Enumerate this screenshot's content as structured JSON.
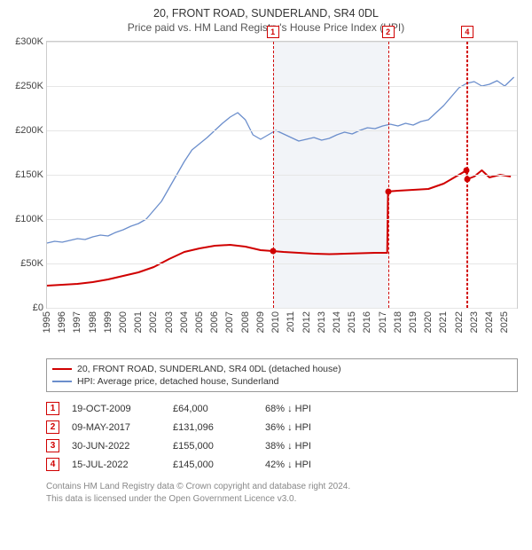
{
  "title": "20, FRONT ROAD, SUNDERLAND, SR4 0DL",
  "subtitle": "Price paid vs. HM Land Registry's House Price Index (HPI)",
  "chart": {
    "type": "line",
    "x_start": 1995,
    "x_end": 2025.8,
    "x_ticks": [
      1995,
      1996,
      1997,
      1998,
      1999,
      2000,
      2001,
      2002,
      2003,
      2004,
      2005,
      2006,
      2007,
      2008,
      2009,
      2010,
      2011,
      2012,
      2013,
      2014,
      2015,
      2016,
      2017,
      2018,
      2019,
      2020,
      2021,
      2022,
      2023,
      2024,
      2025
    ],
    "ylim": [
      0,
      300000
    ],
    "y_ticks": [
      0,
      50000,
      100000,
      150000,
      200000,
      250000,
      300000
    ],
    "y_tick_labels": [
      "£0",
      "£50K",
      "£100K",
      "£150K",
      "£200K",
      "£250K",
      "£300K"
    ],
    "grid_color": "#e6e6e6",
    "border_color": "#cccccc",
    "background_color": "#ffffff",
    "band": {
      "start": 2009.8,
      "end": 2017.35,
      "color": "#f2f4f8"
    },
    "series": [
      {
        "name": "price_paid",
        "label": "20, FRONT ROAD, SUNDERLAND, SR4 0DL (detached house)",
        "color": "#d00000",
        "line_width": 2,
        "points": [
          [
            1995.0,
            25000
          ],
          [
            1996.0,
            26000
          ],
          [
            1997.0,
            27000
          ],
          [
            1998.0,
            29000
          ],
          [
            1999.0,
            32000
          ],
          [
            2000.0,
            36000
          ],
          [
            2001.0,
            40000
          ],
          [
            2002.0,
            46000
          ],
          [
            2003.0,
            55000
          ],
          [
            2004.0,
            63000
          ],
          [
            2005.0,
            67000
          ],
          [
            2006.0,
            70000
          ],
          [
            2007.0,
            71000
          ],
          [
            2008.0,
            69000
          ],
          [
            2009.0,
            65000
          ],
          [
            2009.8,
            64000
          ],
          [
            2010.5,
            63000
          ],
          [
            2011.5,
            62000
          ],
          [
            2012.5,
            61000
          ],
          [
            2013.5,
            60500
          ],
          [
            2014.5,
            61000
          ],
          [
            2015.5,
            61500
          ],
          [
            2016.5,
            62000
          ],
          [
            2017.3,
            62000
          ],
          [
            2017.35,
            131096
          ],
          [
            2018.0,
            132000
          ],
          [
            2019.0,
            133000
          ],
          [
            2020.0,
            134000
          ],
          [
            2021.0,
            140000
          ],
          [
            2022.0,
            150000
          ],
          [
            2022.5,
            155000
          ],
          [
            2022.54,
            145000
          ],
          [
            2023.0,
            148000
          ],
          [
            2023.5,
            155000
          ],
          [
            2024.0,
            147000
          ],
          [
            2024.7,
            150000
          ],
          [
            2025.4,
            148000
          ]
        ]
      },
      {
        "name": "hpi",
        "label": "HPI: Average price, detached house, Sunderland",
        "color": "#6b8ecc",
        "line_width": 1.3,
        "points": [
          [
            1995.0,
            73000
          ],
          [
            1995.5,
            75000
          ],
          [
            1996.0,
            74000
          ],
          [
            1996.5,
            76000
          ],
          [
            1997.0,
            78000
          ],
          [
            1997.5,
            77000
          ],
          [
            1998.0,
            80000
          ],
          [
            1998.5,
            82000
          ],
          [
            1999.0,
            81000
          ],
          [
            1999.5,
            85000
          ],
          [
            2000.0,
            88000
          ],
          [
            2000.5,
            92000
          ],
          [
            2001.0,
            95000
          ],
          [
            2001.5,
            100000
          ],
          [
            2002.0,
            110000
          ],
          [
            2002.5,
            120000
          ],
          [
            2003.0,
            135000
          ],
          [
            2003.5,
            150000
          ],
          [
            2004.0,
            165000
          ],
          [
            2004.5,
            178000
          ],
          [
            2005.0,
            185000
          ],
          [
            2005.5,
            192000
          ],
          [
            2006.0,
            200000
          ],
          [
            2006.5,
            208000
          ],
          [
            2007.0,
            215000
          ],
          [
            2007.5,
            220000
          ],
          [
            2008.0,
            212000
          ],
          [
            2008.5,
            195000
          ],
          [
            2009.0,
            190000
          ],
          [
            2009.5,
            195000
          ],
          [
            2010.0,
            200000
          ],
          [
            2010.5,
            196000
          ],
          [
            2011.0,
            192000
          ],
          [
            2011.5,
            188000
          ],
          [
            2012.0,
            190000
          ],
          [
            2012.5,
            192000
          ],
          [
            2013.0,
            189000
          ],
          [
            2013.5,
            191000
          ],
          [
            2014.0,
            195000
          ],
          [
            2014.5,
            198000
          ],
          [
            2015.0,
            196000
          ],
          [
            2015.5,
            200000
          ],
          [
            2016.0,
            203000
          ],
          [
            2016.5,
            202000
          ],
          [
            2017.0,
            205000
          ],
          [
            2017.5,
            207000
          ],
          [
            2018.0,
            205000
          ],
          [
            2018.5,
            208000
          ],
          [
            2019.0,
            206000
          ],
          [
            2019.5,
            210000
          ],
          [
            2020.0,
            212000
          ],
          [
            2020.5,
            220000
          ],
          [
            2021.0,
            228000
          ],
          [
            2021.5,
            238000
          ],
          [
            2022.0,
            248000
          ],
          [
            2022.5,
            253000
          ],
          [
            2023.0,
            255000
          ],
          [
            2023.5,
            250000
          ],
          [
            2024.0,
            252000
          ],
          [
            2024.5,
            256000
          ],
          [
            2025.0,
            250000
          ],
          [
            2025.6,
            260000
          ]
        ]
      }
    ],
    "markers": [
      {
        "n": "1",
        "x": 2009.8,
        "y": 64000
      },
      {
        "n": "2",
        "x": 2017.35,
        "y": 131096
      },
      {
        "n": "3",
        "x": 2022.5,
        "y": 155000
      },
      {
        "n": "4",
        "x": 2022.54,
        "y": 145000
      }
    ],
    "marker_box_top_indices": [
      0,
      1,
      3
    ],
    "marker_color": "#d00000",
    "label_fontsize": 11
  },
  "events": [
    {
      "n": "1",
      "date": "19-OCT-2009",
      "price": "£64,000",
      "delta": "68% ↓ HPI"
    },
    {
      "n": "2",
      "date": "09-MAY-2017",
      "price": "£131,096",
      "delta": "36% ↓ HPI"
    },
    {
      "n": "3",
      "date": "30-JUN-2022",
      "price": "£155,000",
      "delta": "38% ↓ HPI"
    },
    {
      "n": "4",
      "date": "15-JUL-2022",
      "price": "£145,000",
      "delta": "42% ↓ HPI"
    }
  ],
  "footnote_line1": "Contains HM Land Registry data © Crown copyright and database right 2024.",
  "footnote_line2": "This data is licensed under the Open Government Licence v3.0."
}
